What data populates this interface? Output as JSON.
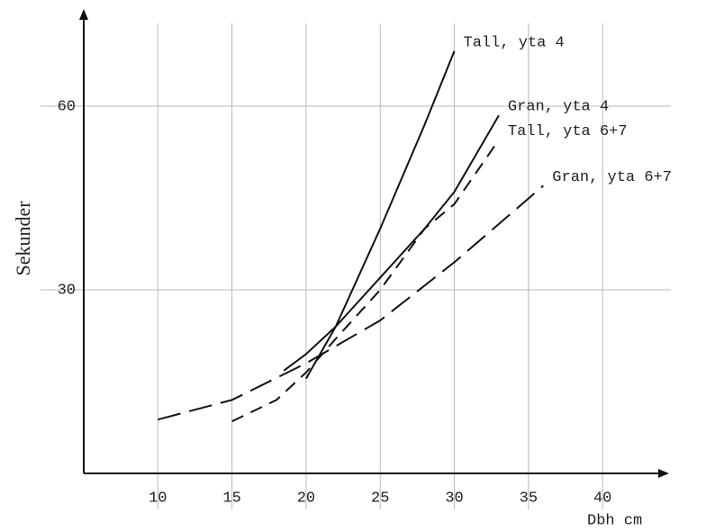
{
  "chart_data": {
    "type": "line",
    "y_label": "Sekunder",
    "x_label": "Dbh cm",
    "xlim": [
      5,
      44
    ],
    "ylim": [
      0,
      75
    ],
    "xticks": [
      10,
      15,
      20,
      25,
      30,
      35,
      40
    ],
    "yticks": [
      30,
      60
    ],
    "grid": true,
    "series": [
      {
        "name": "Tall, yta 4",
        "color": "#111111",
        "style": "solid",
        "x": [
          20,
          22,
          25,
          28,
          30
        ],
        "values": [
          15.5,
          24,
          40,
          57,
          69
        ]
      },
      {
        "name": "Gran, yta 4",
        "color": "#111111",
        "style": "solid",
        "x": [
          18.5,
          20,
          22,
          25,
          28,
          30,
          33
        ],
        "values": [
          16.8,
          19.5,
          24,
          32,
          40,
          46,
          58.5
        ]
      },
      {
        "name": "Tall, yta 6+7",
        "color": "#111111",
        "style": "dashed",
        "x": [
          15,
          18,
          20,
          22,
          25,
          28,
          30,
          33
        ],
        "values": [
          8.5,
          12,
          16.5,
          22,
          30,
          40,
          44,
          54.5
        ]
      },
      {
        "name": "Gran, yta 6+7",
        "color": "#111111",
        "style": "long-dashed",
        "x": [
          10,
          15,
          20,
          25,
          30,
          36
        ],
        "values": [
          8.8,
          12,
          18,
          25,
          34.5,
          47
        ]
      }
    ]
  }
}
